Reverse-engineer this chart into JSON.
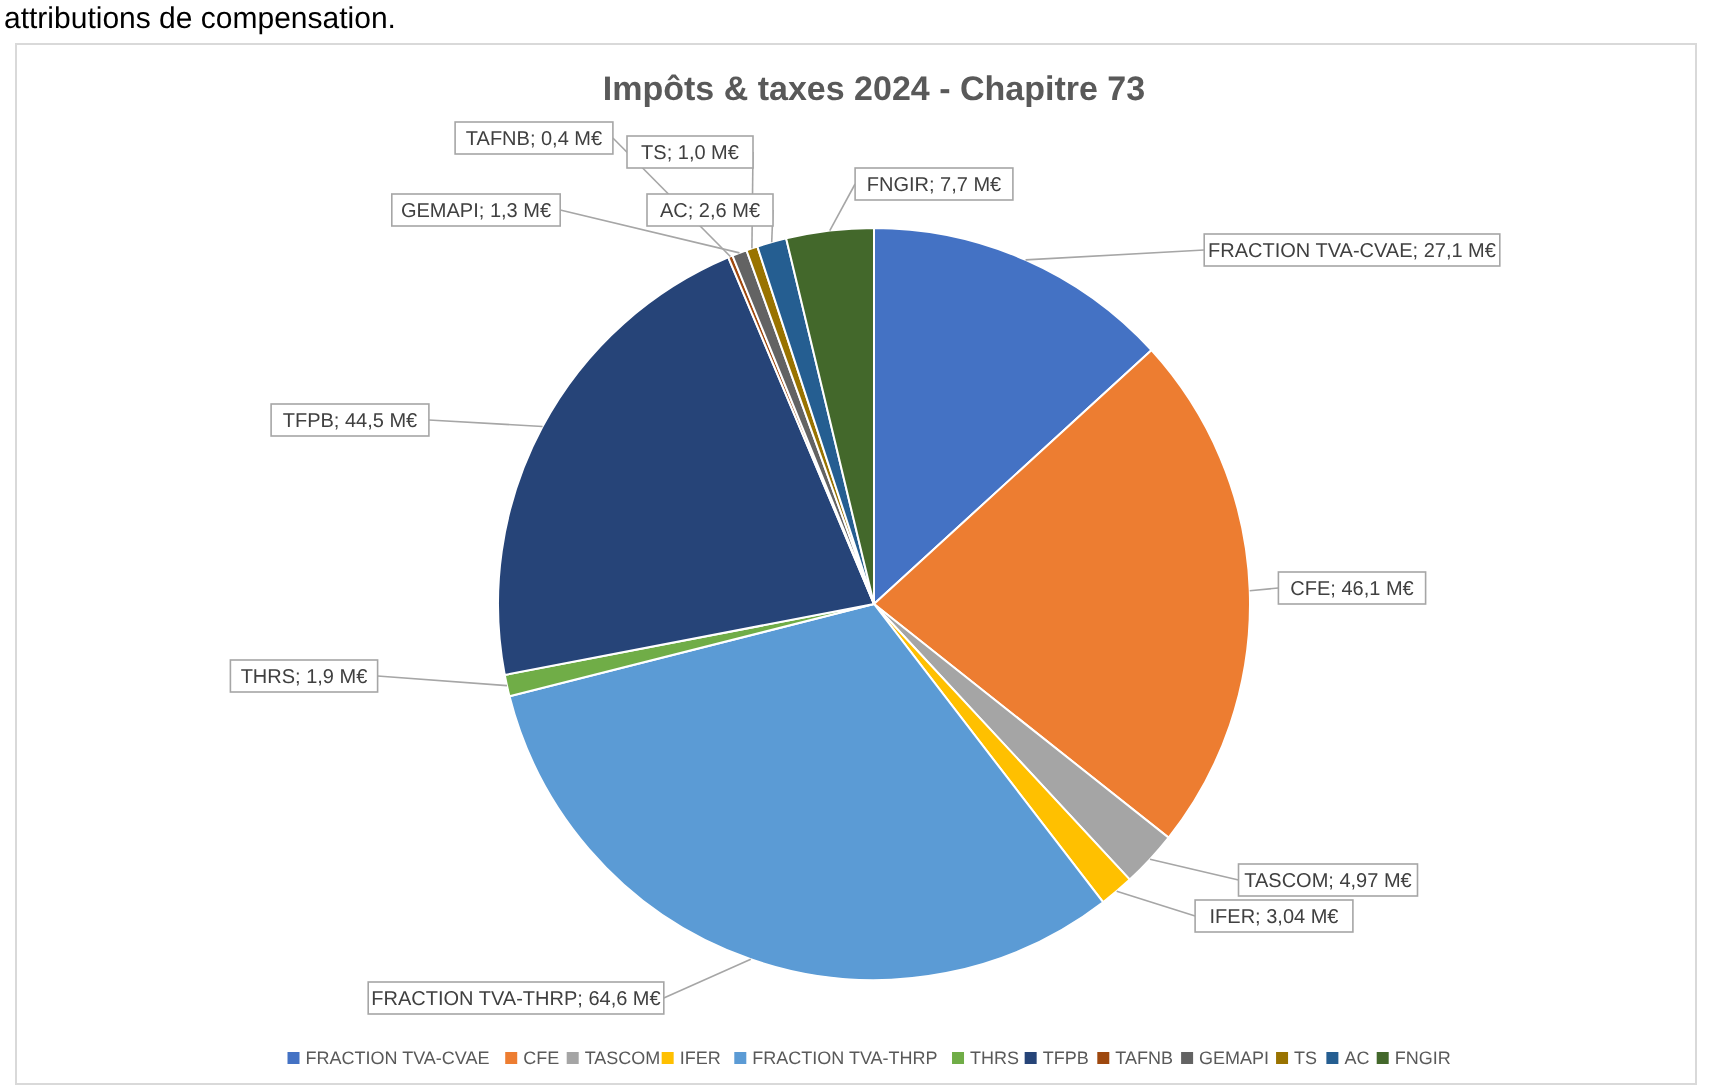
{
  "chart_data": {
    "type": "pie",
    "title": "Impôts & taxes 2024 - Chapitre 73",
    "annotations": [
      "attributions de compensation."
    ],
    "categories": [
      "FRACTION TVA-CVAE",
      "CFE",
      "TASCOM",
      "IFER",
      "FRACTION TVA-THRP",
      "THRS",
      "TFPB",
      "TAFNB",
      "GEMAPI",
      "TS",
      "AC",
      "FNGIR"
    ],
    "values": [
      27.1,
      46.1,
      4.97,
      3.04,
      64.6,
      1.9,
      44.5,
      0.4,
      1.3,
      1.0,
      2.6,
      7.7
    ],
    "value_labels": [
      "FRACTION TVA-CVAE; 27,1 M€",
      "CFE; 46,1 M€",
      "TASCOM; 4,97 M€",
      "IFER; 3,04 M€",
      "FRACTION TVA-THRP; 64,6 M€",
      "THRS; 1,9 M€",
      "TFPB; 44,5 M€",
      "TAFNB; 0,4 M€",
      "GEMAPI; 1,3 M€",
      "TS; 1,0 M€",
      "AC; 2,6 M€",
      "FNGIR; 7,7 M€"
    ],
    "colors": [
      "#4472c4",
      "#ed7d31",
      "#a5a5a5",
      "#ffc000",
      "#5b9bd5",
      "#70ad47",
      "#264478",
      "#9e480e",
      "#636363",
      "#997300",
      "#255e91",
      "#43682b"
    ],
    "legend": "bottom"
  }
}
